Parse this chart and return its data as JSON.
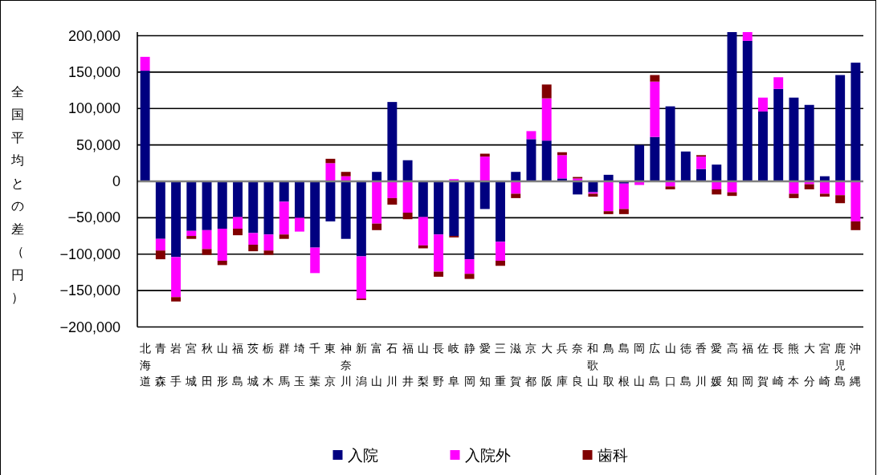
{
  "chart_data": {
    "type": "bar",
    "ylabel": "全国平均との差（円）",
    "categories": [
      "北海道",
      "青森",
      "岩手",
      "宮城",
      "秋田",
      "山形",
      "福島",
      "茨城",
      "栃木",
      "群馬",
      "埼玉",
      "千葉",
      "東京",
      "神奈川",
      "新潟",
      "富山",
      "石川",
      "福井",
      "山梨",
      "長野",
      "岐阜",
      "静岡",
      "愛知",
      "三重",
      "滋賀",
      "京都",
      "大阪",
      "兵庫",
      "奈良",
      "和歌山",
      "鳥取",
      "島根",
      "岡山",
      "広島",
      "山口",
      "徳島",
      "香川",
      "愛媛",
      "高知",
      "福岡",
      "佐賀",
      "長崎",
      "熊本",
      "大分",
      "宮崎",
      "鹿児島",
      "沖縄"
    ],
    "series": [
      {
        "name": "入院",
        "color": "#000080",
        "values": [
          152000,
          -79000,
          -104000,
          -68000,
          -67000,
          -65000,
          -49000,
          -71000,
          -73000,
          -28000,
          -50000,
          -91000,
          -55000,
          -79000,
          -103000,
          13000,
          109000,
          29000,
          -49000,
          -73000,
          -75000,
          -107000,
          -38000,
          -83000,
          13000,
          58000,
          56000,
          4000,
          -18000,
          -15000,
          9000,
          -3000,
          50000,
          61000,
          103000,
          41000,
          17000,
          23000,
          205000,
          193000,
          96000,
          127000,
          115000,
          105000,
          7000,
          146000,
          163000
        ]
      },
      {
        "name": "入院外",
        "color": "#ff00ff",
        "values": [
          19000,
          -16000,
          -55000,
          -7000,
          -26000,
          -44000,
          -16000,
          -16000,
          -22000,
          -45000,
          -19000,
          -35000,
          25000,
          7000,
          -58000,
          -58000,
          -23000,
          -43000,
          -39000,
          -51000,
          3000,
          -20000,
          34000,
          -26000,
          -17000,
          11000,
          58000,
          32000,
          4000,
          -2000,
          -41000,
          -35000,
          -5000,
          76000,
          -7000,
          0,
          17000,
          -11000,
          -15000,
          12000,
          19000,
          16000,
          -17000,
          -4000,
          -17000,
          -19000,
          -55000
        ]
      },
      {
        "name": "歯科",
        "color": "#800000",
        "values": [
          0,
          -12000,
          -6000,
          -4000,
          -8000,
          -6000,
          -9000,
          -9000,
          -6000,
          -6000,
          0,
          0,
          6000,
          6000,
          -2000,
          -9000,
          -9000,
          -9000,
          -4000,
          -7000,
          -2000,
          -7000,
          4000,
          -7000,
          -6000,
          0,
          19000,
          4000,
          2000,
          -4000,
          -4000,
          -7000,
          0,
          9000,
          -4000,
          0,
          2000,
          -7000,
          -5000,
          0,
          0,
          0,
          -6000,
          -7000,
          -4000,
          -11000,
          -12000
        ]
      }
    ],
    "stacked": true,
    "ylim": [
      -200000,
      205000
    ],
    "yticks": [
      {
        "value": -200000,
        "label": "−200,000"
      },
      {
        "value": -150000,
        "label": "−150,000"
      },
      {
        "value": -100000,
        "label": "−100,000"
      },
      {
        "value": -50000,
        "label": "−50,000"
      },
      0,
      {
        "value": 50000,
        "label": "50,000"
      },
      {
        "value": 100000,
        "label": "100,000"
      },
      {
        "value": 150000,
        "label": "150,000"
      },
      {
        "value": 200000,
        "label": "200,000"
      }
    ],
    "grid": "y",
    "legend": "bottom"
  }
}
